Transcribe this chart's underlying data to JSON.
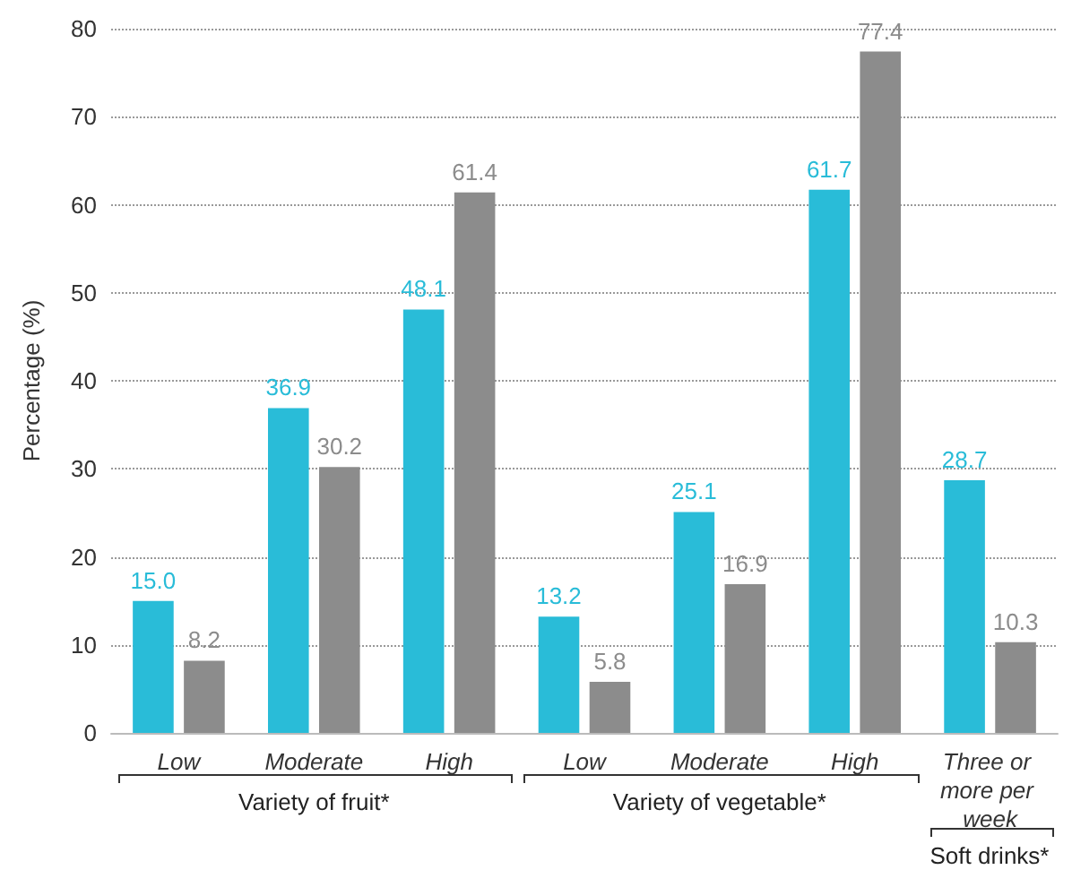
{
  "chart_data": {
    "type": "bar",
    "ylabel": "Percentage (%)",
    "categories": [
      "Low",
      "Moderate",
      "High",
      "Low",
      "Moderate",
      "High",
      "Three or more per week"
    ],
    "series": [
      {
        "color": "#29bcd8",
        "values": [
          15.0,
          36.9,
          48.1,
          13.2,
          25.1,
          61.7,
          28.7
        ],
        "value_labels": [
          "15.0",
          "36.9",
          "48.1",
          "13.2",
          "25.1",
          "61.7",
          "28.7"
        ]
      },
      {
        "color": "#8c8c8c",
        "values": [
          8.2,
          30.2,
          61.4,
          5.8,
          16.9,
          77.4,
          10.3
        ],
        "value_labels": [
          "8.2",
          "30.2",
          "61.4",
          "5.8",
          "16.9",
          "77.4",
          "10.3"
        ]
      }
    ],
    "ylim": [
      0,
      80
    ],
    "yticks": [
      0,
      10,
      20,
      30,
      40,
      50,
      60,
      70,
      80
    ],
    "grid": "y",
    "annotations": [
      "Variety of fruit*",
      "Variety of vegetable*",
      "Soft drinks*"
    ]
  }
}
